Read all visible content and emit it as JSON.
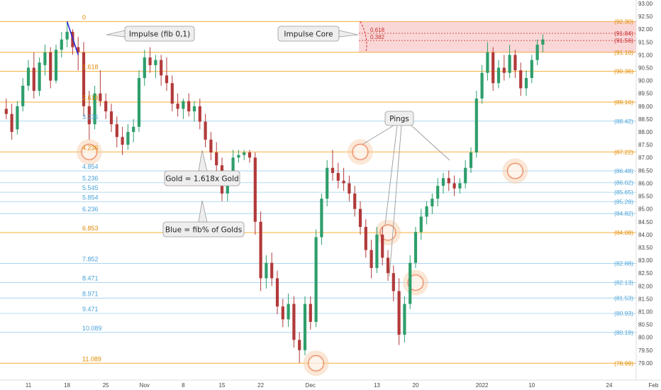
{
  "chart_data": {
    "type": "candlestick",
    "y_axis": {
      "min": 78.5,
      "max": 93.0,
      "ticks": [
        "79.00",
        "79.50",
        "80.00",
        "80.50",
        "81.00",
        "81.50",
        "82.00",
        "82.50",
        "83.00",
        "83.50",
        "84.00",
        "84.50",
        "85.00",
        "85.50",
        "86.00",
        "86.50",
        "87.00",
        "87.50",
        "88.00",
        "88.50",
        "89.00",
        "89.50",
        "90.00",
        "90.50",
        "91.00",
        "91.50",
        "92.00",
        "92.50",
        "93.00"
      ]
    },
    "x_axis": {
      "ticks": [
        {
          "label": "11",
          "day": 0
        },
        {
          "label": "18",
          "day": 7
        },
        {
          "label": "25",
          "day": 14
        },
        {
          "label": "Nov",
          "day": 21
        },
        {
          "label": "8",
          "day": 28
        },
        {
          "label": "15",
          "day": 35
        },
        {
          "label": "22",
          "day": 42
        },
        {
          "label": "Dec",
          "day": 51
        },
        {
          "label": "13",
          "day": 63
        },
        {
          "label": "20",
          "day": 70
        },
        {
          "label": "2022",
          "day": 82
        },
        {
          "label": "10",
          "day": 91
        },
        {
          "label": "24",
          "day": 105
        },
        {
          "label": "Feb",
          "day": 113
        }
      ]
    },
    "fib_levels": [
      {
        "ratio": "0",
        "price": 92.3,
        "price_label": "(92.30)",
        "kind": "gold"
      },
      {
        "ratio": "",
        "price": 91.1,
        "price_label": "(91.10)",
        "kind": "gold"
      },
      {
        "ratio": "1.618",
        "price": 90.36,
        "price_label": "(90.36)",
        "kind": "gold"
      },
      {
        "ratio": "2.618",
        "price": 89.16,
        "price_label": "(89.16)",
        "kind": "gold"
      },
      {
        "ratio": "3.236",
        "price": 88.42,
        "price_label": "(88.42)",
        "kind": "blue"
      },
      {
        "ratio": "4.236",
        "price": 87.22,
        "price_label": "(87.22)",
        "kind": "gold"
      },
      {
        "ratio": "4.854",
        "price": 86.48,
        "price_label": "(86.48)",
        "kind": "blue"
      },
      {
        "ratio": "5.236",
        "price": 86.02,
        "price_label": "(86.02)",
        "kind": "blue"
      },
      {
        "ratio": "5.545",
        "price": 85.65,
        "price_label": "(85.65)",
        "kind": "blue"
      },
      {
        "ratio": "5.854",
        "price": 85.28,
        "price_label": "(85.28)",
        "kind": "blue"
      },
      {
        "ratio": "6.236",
        "price": 84.82,
        "price_label": "(84.82)",
        "kind": "blue"
      },
      {
        "ratio": "6.853",
        "price": 84.08,
        "price_label": "(84.08)",
        "kind": "gold"
      },
      {
        "ratio": "7.852",
        "price": 82.88,
        "price_label": "(82.88)",
        "kind": "blue"
      },
      {
        "ratio": "8.471",
        "price": 82.13,
        "price_label": "(82.13)",
        "kind": "blue"
      },
      {
        "ratio": "8.971",
        "price": 81.53,
        "price_label": "(81.53)",
        "kind": "blue"
      },
      {
        "ratio": "9.471",
        "price": 80.93,
        "price_label": "(80.93)",
        "kind": "blue"
      },
      {
        "ratio": "10.089",
        "price": 80.19,
        "price_label": "(80.19)",
        "kind": "blue"
      },
      {
        "ratio": "11.089",
        "price": 78.99,
        "price_label": "(78.99)",
        "kind": "gold"
      }
    ],
    "impulse_core": {
      "top_price": 92.3,
      "bottom_price": 91.1,
      "inner_levels": [
        {
          "ratio": "0.618",
          "price": 91.84,
          "price_label": "(91.84)"
        },
        {
          "ratio": "0.382",
          "price": 91.56,
          "price_label": "(91.56)"
        }
      ]
    },
    "ping_markers": [
      {
        "day": 11,
        "price": 87.22
      },
      {
        "day": 60,
        "price": 87.22
      },
      {
        "day": 88,
        "price": 86.48
      },
      {
        "day": 65,
        "price": 84.08
      },
      {
        "day": 70,
        "price": 82.13
      },
      {
        "day": 52,
        "price": 78.99
      }
    ],
    "impulse_line": {
      "from": {
        "day": 7,
        "price": 92.3
      },
      "to": {
        "day": 9,
        "price": 91.0
      }
    },
    "annotations": [
      {
        "text": "Impulse (fib 0,1)"
      },
      {
        "text": "Impulse Core"
      },
      {
        "text": "Pings"
      },
      {
        "text": "Gold = 1.618x Gold"
      },
      {
        "text": "Blue = fib% of Golds"
      }
    ],
    "candles": [
      {
        "day": -4,
        "o": 88.9,
        "h": 89.3,
        "l": 88.5,
        "c": 88.7
      },
      {
        "day": -3,
        "o": 88.7,
        "h": 89.1,
        "l": 87.7,
        "c": 88.0
      },
      {
        "day": -2,
        "o": 88.1,
        "h": 89.2,
        "l": 87.9,
        "c": 89.0
      },
      {
        "day": -1,
        "o": 89.0,
        "h": 90.1,
        "l": 88.8,
        "c": 89.8
      },
      {
        "day": 0,
        "o": 89.8,
        "h": 90.8,
        "l": 89.6,
        "c": 90.5
      },
      {
        "day": 1,
        "o": 90.5,
        "h": 91.1,
        "l": 89.3,
        "c": 89.6
      },
      {
        "day": 2,
        "o": 89.6,
        "h": 90.9,
        "l": 89.4,
        "c": 90.7
      },
      {
        "day": 3,
        "o": 90.6,
        "h": 91.4,
        "l": 90.2,
        "c": 91.1
      },
      {
        "day": 4,
        "o": 91.1,
        "h": 91.3,
        "l": 89.7,
        "c": 90.0
      },
      {
        "day": 5,
        "o": 90.0,
        "h": 91.4,
        "l": 89.9,
        "c": 91.2
      },
      {
        "day": 6,
        "o": 91.2,
        "h": 91.9,
        "l": 90.9,
        "c": 91.6
      },
      {
        "day": 7,
        "o": 91.6,
        "h": 92.3,
        "l": 91.3,
        "c": 91.9
      },
      {
        "day": 8,
        "o": 91.9,
        "h": 92.0,
        "l": 91.0,
        "c": 91.3
      },
      {
        "day": 9,
        "o": 91.3,
        "h": 91.7,
        "l": 90.4,
        "c": 91.1
      },
      {
        "day": 10,
        "o": 91.1,
        "h": 91.5,
        "l": 88.6,
        "c": 89.0
      },
      {
        "day": 11,
        "o": 89.0,
        "h": 89.6,
        "l": 87.7,
        "c": 88.3
      },
      {
        "day": 12,
        "o": 88.3,
        "h": 89.8,
        "l": 88.1,
        "c": 89.5
      },
      {
        "day": 13,
        "o": 89.5,
        "h": 90.4,
        "l": 89.0,
        "c": 89.2
      },
      {
        "day": 14,
        "o": 89.2,
        "h": 89.5,
        "l": 88.5,
        "c": 88.8
      },
      {
        "day": 15,
        "o": 88.8,
        "h": 89.1,
        "l": 88.0,
        "c": 88.3
      },
      {
        "day": 16,
        "o": 88.3,
        "h": 88.6,
        "l": 87.4,
        "c": 87.8
      },
      {
        "day": 17,
        "o": 87.8,
        "h": 88.2,
        "l": 87.1,
        "c": 87.5
      },
      {
        "day": 18,
        "o": 87.5,
        "h": 88.3,
        "l": 87.3,
        "c": 88.0
      },
      {
        "day": 19,
        "o": 88.0,
        "h": 88.5,
        "l": 87.6,
        "c": 88.2
      },
      {
        "day": 20,
        "o": 88.2,
        "h": 90.4,
        "l": 88.0,
        "c": 90.1
      },
      {
        "day": 21,
        "o": 90.1,
        "h": 91.2,
        "l": 89.8,
        "c": 90.9
      },
      {
        "day": 22,
        "o": 90.9,
        "h": 91.3,
        "l": 90.3,
        "c": 90.6
      },
      {
        "day": 23,
        "o": 90.6,
        "h": 91.0,
        "l": 90.1,
        "c": 90.8
      },
      {
        "day": 24,
        "o": 90.8,
        "h": 91.0,
        "l": 89.8,
        "c": 90.2
      },
      {
        "day": 25,
        "o": 90.2,
        "h": 90.9,
        "l": 89.6,
        "c": 89.9
      },
      {
        "day": 26,
        "o": 89.9,
        "h": 90.2,
        "l": 88.8,
        "c": 89.1
      },
      {
        "day": 27,
        "o": 89.1,
        "h": 89.5,
        "l": 88.6,
        "c": 88.9
      },
      {
        "day": 28,
        "o": 88.9,
        "h": 89.3,
        "l": 88.5,
        "c": 89.2
      },
      {
        "day": 29,
        "o": 89.2,
        "h": 89.5,
        "l": 88.6,
        "c": 88.8
      },
      {
        "day": 30,
        "o": 88.8,
        "h": 89.2,
        "l": 88.4,
        "c": 89.0
      },
      {
        "day": 31,
        "o": 89.0,
        "h": 89.3,
        "l": 88.1,
        "c": 88.4
      },
      {
        "day": 32,
        "o": 88.4,
        "h": 88.7,
        "l": 87.4,
        "c": 87.7
      },
      {
        "day": 33,
        "o": 87.7,
        "h": 88.0,
        "l": 86.9,
        "c": 87.2
      },
      {
        "day": 34,
        "o": 87.2,
        "h": 87.6,
        "l": 86.4,
        "c": 86.7
      },
      {
        "day": 35,
        "o": 86.7,
        "h": 87.0,
        "l": 85.3,
        "c": 85.6
      },
      {
        "day": 36,
        "o": 85.6,
        "h": 86.4,
        "l": 85.3,
        "c": 86.2
      },
      {
        "day": 37,
        "o": 86.2,
        "h": 87.3,
        "l": 86.0,
        "c": 87.0
      },
      {
        "day": 38,
        "o": 87.0,
        "h": 87.3,
        "l": 86.8,
        "c": 87.1
      },
      {
        "day": 39,
        "o": 87.1,
        "h": 87.3,
        "l": 86.9,
        "c": 87.2
      },
      {
        "day": 40,
        "o": 87.2,
        "h": 87.3,
        "l": 86.8,
        "c": 87.0
      },
      {
        "day": 41,
        "o": 87.0,
        "h": 87.2,
        "l": 84.0,
        "c": 84.5
      },
      {
        "day": 42,
        "o": 84.5,
        "h": 84.9,
        "l": 81.8,
        "c": 82.3
      },
      {
        "day": 43,
        "o": 82.3,
        "h": 83.2,
        "l": 81.9,
        "c": 82.9
      },
      {
        "day": 44,
        "o": 82.9,
        "h": 83.3,
        "l": 82.0,
        "c": 82.3
      },
      {
        "day": 45,
        "o": 82.3,
        "h": 82.6,
        "l": 80.9,
        "c": 81.2
      },
      {
        "day": 46,
        "o": 81.2,
        "h": 81.5,
        "l": 80.4,
        "c": 80.7
      },
      {
        "day": 47,
        "o": 80.7,
        "h": 81.7,
        "l": 80.4,
        "c": 81.3
      },
      {
        "day": 48,
        "o": 81.3,
        "h": 81.6,
        "l": 79.6,
        "c": 79.9
      },
      {
        "day": 49,
        "o": 79.9,
        "h": 80.2,
        "l": 79.0,
        "c": 79.5
      },
      {
        "day": 50,
        "o": 79.5,
        "h": 81.6,
        "l": 79.3,
        "c": 81.3
      },
      {
        "day": 51,
        "o": 81.3,
        "h": 81.6,
        "l": 80.3,
        "c": 80.6
      },
      {
        "day": 52,
        "o": 80.6,
        "h": 84.2,
        "l": 80.4,
        "c": 83.9
      },
      {
        "day": 53,
        "o": 83.9,
        "h": 85.6,
        "l": 83.6,
        "c": 85.4
      },
      {
        "day": 54,
        "o": 85.4,
        "h": 86.9,
        "l": 85.1,
        "c": 86.6
      },
      {
        "day": 55,
        "o": 86.6,
        "h": 87.3,
        "l": 86.1,
        "c": 86.4
      },
      {
        "day": 56,
        "o": 86.4,
        "h": 86.8,
        "l": 85.8,
        "c": 86.1
      },
      {
        "day": 57,
        "o": 86.1,
        "h": 86.6,
        "l": 85.7,
        "c": 86.0
      },
      {
        "day": 58,
        "o": 86.0,
        "h": 86.3,
        "l": 85.3,
        "c": 85.6
      },
      {
        "day": 59,
        "o": 85.6,
        "h": 85.9,
        "l": 84.7,
        "c": 85.0
      },
      {
        "day": 60,
        "o": 85.0,
        "h": 85.3,
        "l": 84.0,
        "c": 84.3
      },
      {
        "day": 61,
        "o": 84.3,
        "h": 84.6,
        "l": 83.1,
        "c": 83.4
      },
      {
        "day": 62,
        "o": 83.4,
        "h": 83.8,
        "l": 82.3,
        "c": 82.7
      },
      {
        "day": 63,
        "o": 82.7,
        "h": 84.3,
        "l": 82.5,
        "c": 84.0
      },
      {
        "day": 64,
        "o": 84.0,
        "h": 84.3,
        "l": 82.8,
        "c": 83.1
      },
      {
        "day": 65,
        "o": 83.1,
        "h": 83.4,
        "l": 82.2,
        "c": 82.5
      },
      {
        "day": 66,
        "o": 82.5,
        "h": 82.8,
        "l": 81.4,
        "c": 81.8
      },
      {
        "day": 67,
        "o": 81.8,
        "h": 82.3,
        "l": 79.7,
        "c": 80.1
      },
      {
        "day": 68,
        "o": 80.1,
        "h": 81.6,
        "l": 79.8,
        "c": 81.3
      },
      {
        "day": 69,
        "o": 81.3,
        "h": 83.2,
        "l": 81.1,
        "c": 82.9
      },
      {
        "day": 70,
        "o": 82.9,
        "h": 84.3,
        "l": 82.7,
        "c": 84.1
      },
      {
        "day": 71,
        "o": 84.1,
        "h": 85.0,
        "l": 83.8,
        "c": 84.7
      },
      {
        "day": 72,
        "o": 84.7,
        "h": 85.3,
        "l": 84.4,
        "c": 85.1
      },
      {
        "day": 73,
        "o": 85.1,
        "h": 85.6,
        "l": 84.8,
        "c": 85.4
      },
      {
        "day": 74,
        "o": 85.4,
        "h": 86.2,
        "l": 85.1,
        "c": 85.9
      },
      {
        "day": 75,
        "o": 85.9,
        "h": 86.4,
        "l": 85.6,
        "c": 86.2
      },
      {
        "day": 76,
        "o": 86.2,
        "h": 86.5,
        "l": 85.7,
        "c": 86.0
      },
      {
        "day": 77,
        "o": 86.0,
        "h": 86.3,
        "l": 85.5,
        "c": 85.8
      },
      {
        "day": 78,
        "o": 85.8,
        "h": 86.2,
        "l": 85.6,
        "c": 86.0
      },
      {
        "day": 79,
        "o": 86.0,
        "h": 86.9,
        "l": 85.8,
        "c": 86.6
      },
      {
        "day": 80,
        "o": 86.6,
        "h": 87.4,
        "l": 86.4,
        "c": 87.2
      },
      {
        "day": 81,
        "o": 87.2,
        "h": 89.6,
        "l": 87.0,
        "c": 89.3
      },
      {
        "day": 82,
        "o": 89.3,
        "h": 90.6,
        "l": 89.1,
        "c": 90.3
      },
      {
        "day": 83,
        "o": 90.3,
        "h": 91.5,
        "l": 90.0,
        "c": 91.1
      },
      {
        "day": 84,
        "o": 91.1,
        "h": 91.3,
        "l": 89.6,
        "c": 89.9
      },
      {
        "day": 85,
        "o": 89.9,
        "h": 90.8,
        "l": 89.7,
        "c": 90.5
      },
      {
        "day": 86,
        "o": 90.5,
        "h": 91.0,
        "l": 90.0,
        "c": 90.3
      },
      {
        "day": 87,
        "o": 90.3,
        "h": 91.4,
        "l": 90.1,
        "c": 91.0
      },
      {
        "day": 88,
        "o": 91.0,
        "h": 91.2,
        "l": 90.1,
        "c": 90.4
      },
      {
        "day": 89,
        "o": 90.4,
        "h": 90.7,
        "l": 89.4,
        "c": 89.7
      },
      {
        "day": 90,
        "o": 89.7,
        "h": 90.4,
        "l": 89.4,
        "c": 90.1
      },
      {
        "day": 91,
        "o": 90.1,
        "h": 91.0,
        "l": 89.9,
        "c": 90.8
      },
      {
        "day": 92,
        "o": 90.8,
        "h": 91.6,
        "l": 90.6,
        "c": 91.4
      },
      {
        "day": 93,
        "o": 91.4,
        "h": 91.8,
        "l": 91.1,
        "c": 91.6
      }
    ]
  }
}
